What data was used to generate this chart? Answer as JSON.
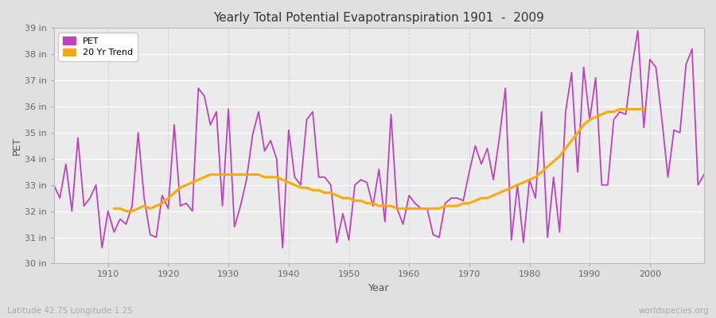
{
  "title": "Yearly Total Potential Evapotranspiration 1901  -  2009",
  "xlabel": "Year",
  "ylabel": "PET",
  "footnote_left": "Latitude 42.75 Longitude 1.25",
  "footnote_right": "worldspecies.org",
  "xlim": [
    1901,
    2009
  ],
  "ylim": [
    30,
    39
  ],
  "yticks": [
    30,
    31,
    32,
    33,
    34,
    35,
    36,
    37,
    38,
    39
  ],
  "ytick_labels": [
    "30 in",
    "31 in",
    "32 in",
    "33 in",
    "34 in",
    "35 in",
    "36 in",
    "37 in",
    "38 in",
    "39 in"
  ],
  "xticks": [
    1910,
    1920,
    1930,
    1940,
    1950,
    1960,
    1970,
    1980,
    1990,
    2000
  ],
  "pet_color": "#bb44bb",
  "trend_color": "#ffaa00",
  "bg_color": "#e0e0e0",
  "plot_bg_color": "#ebebeb",
  "legend_labels": [
    "PET",
    "20 Yr Trend"
  ],
  "years": [
    1901,
    1902,
    1903,
    1904,
    1905,
    1906,
    1907,
    1908,
    1909,
    1910,
    1911,
    1912,
    1913,
    1914,
    1915,
    1916,
    1917,
    1918,
    1919,
    1920,
    1921,
    1922,
    1923,
    1924,
    1925,
    1926,
    1927,
    1928,
    1929,
    1930,
    1931,
    1932,
    1933,
    1934,
    1935,
    1936,
    1937,
    1938,
    1939,
    1940,
    1941,
    1942,
    1943,
    1944,
    1945,
    1946,
    1947,
    1948,
    1949,
    1950,
    1951,
    1952,
    1953,
    1954,
    1955,
    1956,
    1957,
    1958,
    1959,
    1960,
    1961,
    1962,
    1963,
    1964,
    1965,
    1966,
    1967,
    1968,
    1969,
    1970,
    1971,
    1972,
    1973,
    1974,
    1975,
    1976,
    1977,
    1978,
    1979,
    1980,
    1981,
    1982,
    1983,
    1984,
    1985,
    1986,
    1987,
    1988,
    1989,
    1990,
    1991,
    1992,
    1993,
    1994,
    1995,
    1996,
    1997,
    1998,
    1999,
    2000,
    2001,
    2002,
    2003,
    2004,
    2005,
    2006,
    2007,
    2008,
    2009
  ],
  "pet_values": [
    33.0,
    32.5,
    33.8,
    32.0,
    34.8,
    32.2,
    32.5,
    33.0,
    30.6,
    32.0,
    31.2,
    31.7,
    31.5,
    32.2,
    35.0,
    32.5,
    31.1,
    31.0,
    32.6,
    32.1,
    35.3,
    32.2,
    32.3,
    32.0,
    36.7,
    36.4,
    35.3,
    35.8,
    32.2,
    35.9,
    31.4,
    32.2,
    33.2,
    34.9,
    35.8,
    34.3,
    34.7,
    34.0,
    30.6,
    35.1,
    33.3,
    33.0,
    35.5,
    35.8,
    33.3,
    33.3,
    33.0,
    30.8,
    31.9,
    30.9,
    33.0,
    33.2,
    33.1,
    32.2,
    33.6,
    31.6,
    35.7,
    32.1,
    31.5,
    32.6,
    32.3,
    32.1,
    32.1,
    31.1,
    31.0,
    32.3,
    32.5,
    32.5,
    32.4,
    33.5,
    34.5,
    33.8,
    34.4,
    33.2,
    34.8,
    36.7,
    30.9,
    33.0,
    30.8,
    33.2,
    32.5,
    35.8,
    31.0,
    33.3,
    31.2,
    35.8,
    37.3,
    33.5,
    37.5,
    35.5,
    37.1,
    33.0,
    33.0,
    35.5,
    35.8,
    35.7,
    37.5,
    38.9,
    35.2,
    37.8,
    37.5,
    35.5,
    33.3,
    35.1,
    35.0,
    37.6,
    38.2,
    33.0,
    33.4
  ],
  "trend_values": [
    null,
    null,
    null,
    null,
    null,
    null,
    null,
    null,
    null,
    null,
    32.1,
    32.1,
    32.0,
    32.0,
    32.1,
    32.2,
    32.1,
    32.2,
    32.3,
    32.5,
    32.7,
    32.9,
    33.0,
    33.1,
    33.2,
    33.3,
    33.4,
    33.4,
    33.4,
    33.4,
    33.4,
    33.4,
    33.4,
    33.4,
    33.4,
    33.3,
    33.3,
    33.3,
    33.2,
    33.1,
    33.0,
    32.9,
    32.9,
    32.8,
    32.8,
    32.7,
    32.7,
    32.6,
    32.5,
    32.5,
    32.4,
    32.4,
    32.3,
    32.3,
    32.2,
    32.2,
    32.2,
    32.1,
    32.1,
    32.1,
    32.1,
    32.1,
    32.1,
    32.1,
    32.1,
    32.2,
    32.2,
    32.2,
    32.3,
    32.3,
    32.4,
    32.5,
    32.5,
    32.6,
    32.7,
    32.8,
    32.9,
    33.0,
    33.1,
    33.2,
    33.3,
    33.5,
    33.7,
    33.9,
    34.1,
    34.4,
    34.7,
    35.0,
    35.3,
    35.5,
    35.6,
    35.7,
    35.8,
    35.8,
    35.9,
    35.9,
    35.9,
    35.9,
    35.9,
    null,
    null,
    null,
    null,
    null,
    null,
    null,
    null,
    null,
    null
  ]
}
